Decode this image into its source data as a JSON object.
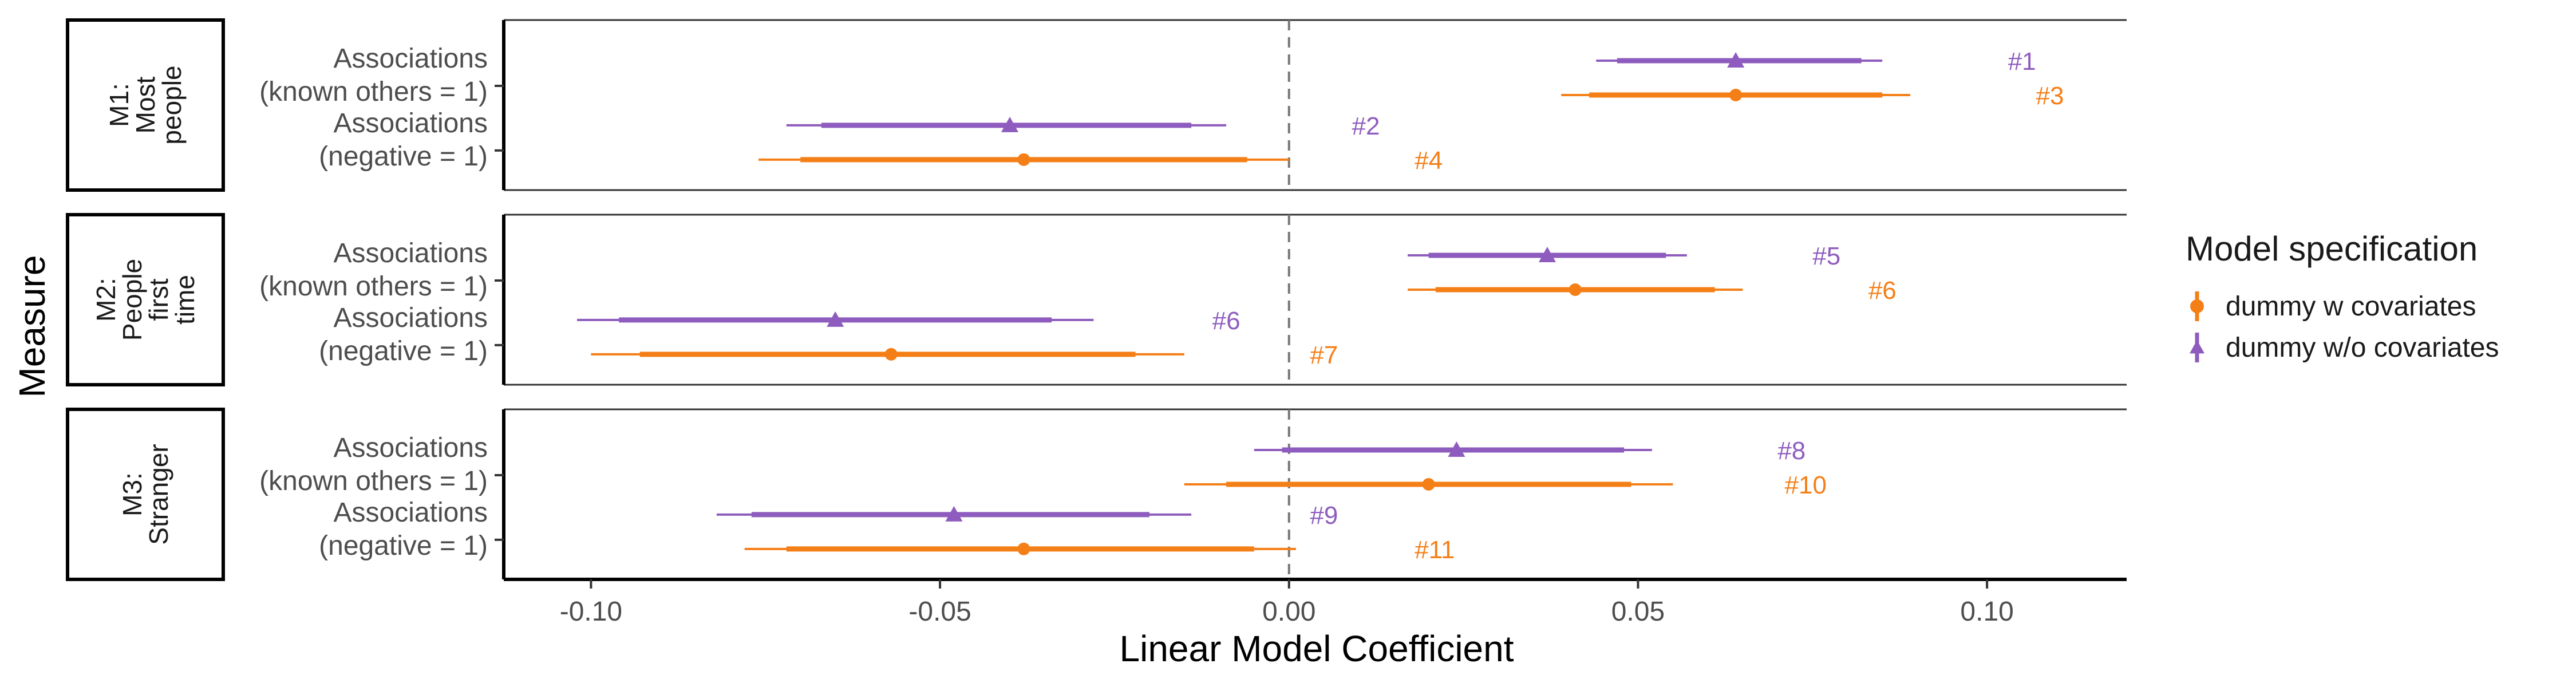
{
  "chart_data": {
    "type": "forest",
    "xlabel": "Linear Model Coefficient",
    "ylabel": "Measure",
    "xlim": [
      -0.1125,
      0.12
    ],
    "x_ticks": [
      -0.1,
      -0.05,
      0.0,
      0.05,
      0.1
    ],
    "x_tick_labels": [
      "-0.10",
      "-0.05",
      "0.00",
      "0.05",
      "0.10"
    ],
    "reference_line": 0,
    "legend": {
      "title": "Model specification",
      "position": "right",
      "entries": [
        {
          "label": "dummy w covariates",
          "color": "#F57F17",
          "shape": "circle"
        },
        {
          "label": "dummy w/o covariates",
          "color": "#8E5CBE",
          "shape": "triangle"
        }
      ]
    },
    "row_labels": {
      "known": [
        "Associations",
        "(known others = 1)"
      ],
      "negative": [
        "Associations",
        "(negative = 1)"
      ]
    },
    "panels": [
      {
        "strip": [
          "M1:",
          "Most",
          "people"
        ],
        "rows": [
          {
            "row": "known",
            "estimates": [
              {
                "spec": "dummy w/o covariates",
                "est": 0.064,
                "inner": [
                  0.047,
                  0.082
                ],
                "outer": [
                  0.044,
                  0.085
                ],
                "annotation": "#1",
                "ann_x": 0.103
              },
              {
                "spec": "dummy w covariates",
                "est": 0.064,
                "inner": [
                  0.043,
                  0.085
                ],
                "outer": [
                  0.039,
                  0.089
                ],
                "annotation": "#3",
                "ann_x": 0.107
              }
            ]
          },
          {
            "row": "negative",
            "estimates": [
              {
                "spec": "dummy w/o covariates",
                "est": -0.04,
                "inner": [
                  -0.067,
                  -0.014
                ],
                "outer": [
                  -0.072,
                  -0.009
                ],
                "annotation": "#2",
                "ann_x": 0.009
              },
              {
                "spec": "dummy w covariates",
                "est": -0.038,
                "inner": [
                  -0.07,
                  -0.006
                ],
                "outer": [
                  -0.076,
                  0.0
                ],
                "annotation": "#4",
                "ann_x": 0.018
              }
            ]
          }
        ]
      },
      {
        "strip": [
          "M2:",
          "People",
          "first",
          "time"
        ],
        "rows": [
          {
            "row": "known",
            "estimates": [
              {
                "spec": "dummy w/o covariates",
                "est": 0.037,
                "inner": [
                  0.02,
                  0.054
                ],
                "outer": [
                  0.017,
                  0.057
                ],
                "annotation": "#5",
                "ann_x": 0.075
              },
              {
                "spec": "dummy w covariates",
                "est": 0.041,
                "inner": [
                  0.021,
                  0.061
                ],
                "outer": [
                  0.017,
                  0.065
                ],
                "annotation": "#6",
                "ann_x": 0.083
              }
            ]
          },
          {
            "row": "negative",
            "estimates": [
              {
                "spec": "dummy w/o covariates",
                "est": -0.065,
                "inner": [
                  -0.096,
                  -0.034
                ],
                "outer": [
                  -0.102,
                  -0.028
                ],
                "annotation": "#6",
                "ann_x": -0.011
              },
              {
                "spec": "dummy w covariates",
                "est": -0.057,
                "inner": [
                  -0.093,
                  -0.022
                ],
                "outer": [
                  -0.1,
                  -0.015
                ],
                "annotation": "#7",
                "ann_x": 0.003
              }
            ]
          }
        ]
      },
      {
        "strip": [
          "M3:",
          "Stranger"
        ],
        "rows": [
          {
            "row": "known",
            "estimates": [
              {
                "spec": "dummy w/o covariates",
                "est": 0.024,
                "inner": [
                  -0.001,
                  0.048
                ],
                "outer": [
                  -0.005,
                  0.052
                ],
                "annotation": "#8",
                "ann_x": 0.07
              },
              {
                "spec": "dummy w covariates",
                "est": 0.02,
                "inner": [
                  -0.009,
                  0.049
                ],
                "outer": [
                  -0.015,
                  0.055
                ],
                "annotation": "#10",
                "ann_x": 0.071
              }
            ]
          },
          {
            "row": "negative",
            "estimates": [
              {
                "spec": "dummy w/o covariates",
                "est": -0.048,
                "inner": [
                  -0.077,
                  -0.02
                ],
                "outer": [
                  -0.082,
                  -0.014
                ],
                "annotation": "#9",
                "ann_x": 0.003
              },
              {
                "spec": "dummy w covariates",
                "est": -0.038,
                "inner": [
                  -0.072,
                  -0.005
                ],
                "outer": [
                  -0.078,
                  0.001
                ],
                "annotation": "#11",
                "ann_x": 0.018
              }
            ]
          }
        ]
      }
    ]
  }
}
